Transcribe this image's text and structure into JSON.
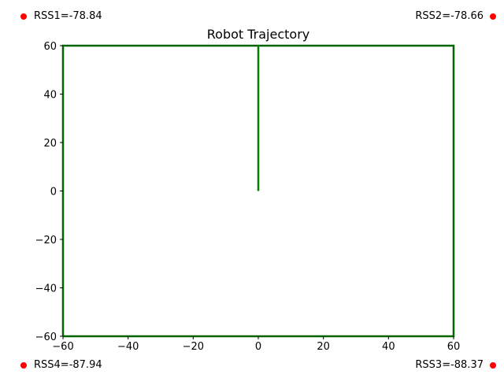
{
  "chart_data": {
    "type": "line",
    "title": "Robot Trajectory",
    "xlabel": "",
    "ylabel": "",
    "xlim": [
      -60,
      60
    ],
    "ylim": [
      -60,
      60
    ],
    "xticks": [
      -60,
      -40,
      -20,
      0,
      20,
      40,
      60
    ],
    "yticks": [
      -60,
      -40,
      -20,
      0,
      20,
      40,
      60
    ],
    "xtick_labels": [
      "−60",
      "−40",
      "−20",
      "0",
      "20",
      "40",
      "60"
    ],
    "ytick_labels": [
      "−60",
      "−40",
      "−20",
      "0",
      "20",
      "40",
      "60"
    ],
    "grid": false,
    "series": [
      {
        "x": [
          0,
          0
        ],
        "y": [
          0,
          60
        ],
        "color": "#008000"
      }
    ],
    "boundary": {
      "x": [
        -60,
        60,
        60,
        -60,
        -60
      ],
      "y": [
        -60,
        -60,
        60,
        60,
        -60
      ],
      "color": "#006400"
    },
    "sensors": [
      {
        "label": "RSS1=-78.84",
        "corner": "top-left",
        "color": "#ff0000"
      },
      {
        "label": "RSS2=-78.66",
        "corner": "top-right",
        "color": "#ff0000"
      },
      {
        "label": "RSS3=-88.37",
        "corner": "bottom-right",
        "color": "#ff0000"
      },
      {
        "label": "RSS4=-87.94",
        "corner": "bottom-left",
        "color": "#ff0000"
      }
    ]
  }
}
